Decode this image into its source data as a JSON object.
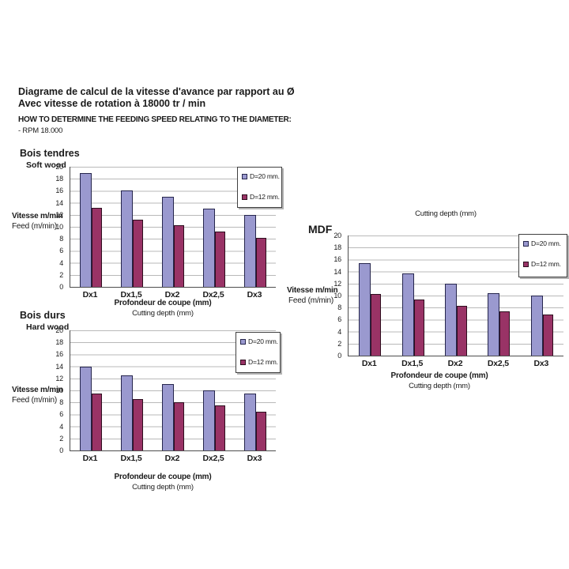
{
  "header": {
    "title_fr_line1": "Diagrame de calcul de la vitesse d'avance par rapport au Ø",
    "title_fr_line2": "Avec vitesse de rotation à 18000 tr / min",
    "title_en": "HOW TO DETERMINE THE FEEDING SPEED RELATING TO THE DIAMETER:",
    "rpm_note": "- RPM 18.000"
  },
  "colors": {
    "series_d20_fill": "#9A99CF",
    "series_d20_border": "#26264D",
    "series_d12_fill": "#993366",
    "series_d12_border": "#2E0E1E",
    "gridline": "#B9B9B9",
    "axis": "#4D4D4D"
  },
  "chart_data": [
    {
      "type": "bar",
      "title_fr": "Bois tendres",
      "title_en": "Soft wood",
      "categories": [
        "Dx1",
        "Dx1,5",
        "Dx2",
        "Dx2,5",
        "Dx3"
      ],
      "series": [
        {
          "name": "D=20 mm.",
          "values": [
            19,
            16,
            15,
            13,
            12
          ]
        },
        {
          "name": "D=12 mm.",
          "values": [
            13.2,
            11.2,
            10.2,
            9.2,
            8.2
          ]
        }
      ],
      "ylabel_fr": "Vitesse m/min",
      "ylabel_en": "Feed (m/min)",
      "xlabel_fr": "Profondeur de coupe (mm)",
      "xlabel_en": "Cutting depth (mm)",
      "ylim": [
        0,
        20
      ],
      "ytick_step": 2,
      "grid": true,
      "legend_position": "top-right"
    },
    {
      "type": "bar",
      "title_fr": "Bois durs",
      "title_en": "Hard wood",
      "categories": [
        "Dx1",
        "Dx1,5",
        "Dx2",
        "Dx2,5",
        "Dx3"
      ],
      "series": [
        {
          "name": "D=20 mm.",
          "values": [
            14,
            12.5,
            11,
            10,
            9.5
          ]
        },
        {
          "name": "D=12 mm.",
          "values": [
            9.5,
            8.5,
            8,
            7.5,
            6.5
          ]
        }
      ],
      "ylabel_fr": "Vitesse m/min",
      "ylabel_en": "Feed (m/min)",
      "xlabel_fr": "Profondeur de coupe (mm)",
      "xlabel_en": "Cutting depth (mm)",
      "ylim": [
        0,
        20
      ],
      "ytick_step": 2,
      "grid": true,
      "legend_position": "top-right"
    },
    {
      "type": "bar",
      "title_fr": "MDF",
      "title_en": "",
      "top_label": "Cutting depth (mm)",
      "categories": [
        "Dx1",
        "Dx1,5",
        "Dx2",
        "Dx2,5",
        "Dx3"
      ],
      "series": [
        {
          "name": "D=20 mm.",
          "values": [
            15.4,
            13.7,
            12,
            10.4,
            10
          ]
        },
        {
          "name": "D=12 mm.",
          "values": [
            10.3,
            9.3,
            8.3,
            7.4,
            6.8
          ]
        }
      ],
      "ylabel_fr": "Vitesse m/min",
      "ylabel_en": "Feed (m/min)",
      "xlabel_fr": "Profondeur de coupe (mm)",
      "xlabel_en": "Cutting depth (mm)",
      "ylim": [
        0,
        20
      ],
      "ytick_step": 2,
      "grid": true,
      "legend_position": "top-right"
    }
  ]
}
